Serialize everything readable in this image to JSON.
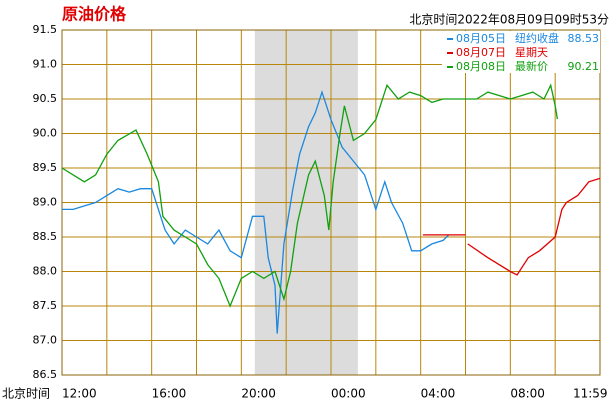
{
  "chart_data": {
    "type": "line",
    "title": "原油价格",
    "subtitle": "北京时间2022年08月09日09时53分",
    "x_axis_label": "北京时间",
    "xlim": [
      0,
      24
    ],
    "xticks": [
      {
        "value": 0,
        "label": "12:00"
      },
      {
        "value": 4,
        "label": "16:00"
      },
      {
        "value": 8,
        "label": "20:00"
      },
      {
        "value": 12,
        "label": "00:00"
      },
      {
        "value": 16,
        "label": "04:00"
      },
      {
        "value": 20,
        "label": "08:00"
      },
      {
        "value": 23.98,
        "label": "11:59"
      }
    ],
    "xgrid": [
      2,
      4,
      6,
      8,
      10,
      12,
      14,
      16,
      18,
      20,
      22,
      24
    ],
    "shaded_x": [
      8.6,
      13.2
    ],
    "ylim": [
      86.5,
      91.5
    ],
    "yticks": [
      {
        "value": 86.5,
        "label": "86.5"
      },
      {
        "value": 87,
        "label": "87.0"
      },
      {
        "value": 87.5,
        "label": "87.5"
      },
      {
        "value": 88,
        "label": "88.0"
      },
      {
        "value": 88.5,
        "label": "88.5"
      },
      {
        "value": 89,
        "label": "89.0"
      },
      {
        "value": 89.5,
        "label": "89.5"
      },
      {
        "value": 90,
        "label": "90.0"
      },
      {
        "value": 90.5,
        "label": "90.5"
      },
      {
        "value": 91,
        "label": "91.0"
      },
      {
        "value": 91.5,
        "label": "91.5"
      }
    ],
    "grid": true,
    "series": [
      {
        "name": "08月05日",
        "color": "#1a88e0",
        "note": "纽约收盘",
        "value_label": "88.53",
        "x": [
          0,
          0.5,
          1,
          1.5,
          2,
          2.5,
          3,
          3.5,
          4,
          4.3,
          4.6,
          5,
          5.5,
          6,
          6.5,
          7,
          7.5,
          8,
          8.5,
          9,
          9.2,
          9.5,
          9.6,
          9.9,
          10.3,
          10.6,
          11,
          11.3,
          11.6,
          12,
          12.5,
          13,
          13.5,
          14,
          14.4,
          14.7,
          15.2,
          15.6,
          16,
          16.5,
          17,
          17.25
        ],
        "values": [
          88.9,
          88.9,
          88.95,
          89.0,
          89.1,
          89.2,
          89.15,
          89.2,
          89.2,
          88.9,
          88.6,
          88.4,
          88.6,
          88.5,
          88.4,
          88.6,
          88.3,
          88.2,
          88.8,
          88.8,
          88.2,
          87.8,
          87.1,
          88.4,
          89.2,
          89.7,
          90.1,
          90.3,
          90.6,
          90.2,
          89.8,
          89.6,
          89.4,
          88.9,
          89.3,
          89.0,
          88.7,
          88.3,
          88.3,
          88.4,
          88.45,
          88.53
        ]
      },
      {
        "name": "08月07日",
        "color": "#e00000",
        "note": "星期天",
        "x": [
          16.1,
          18.0,
          18.1,
          18.1,
          19,
          20,
          20.3,
          20.8,
          21.3,
          22,
          22.3,
          22.5,
          23,
          23.5,
          24
        ],
        "values": [
          88.53,
          88.53,
          null,
          88.4,
          88.2,
          88.0,
          87.95,
          88.2,
          88.3,
          88.5,
          88.9,
          89.0,
          89.1,
          89.3,
          89.35
        ]
      },
      {
        "name": "08月08日",
        "color": "#10a010",
        "note": "最新价",
        "value_label": "90.21",
        "x": [
          0,
          0.5,
          1,
          1.5,
          2,
          2.5,
          3.3,
          3.8,
          4.3,
          4.5,
          5,
          5.5,
          6,
          6.5,
          7,
          7.5,
          8,
          8.5,
          9,
          9.5,
          9.9,
          10.2,
          10.5,
          11,
          11.3,
          11.7,
          11.9,
          12.1,
          12.4,
          12.6,
          13,
          13.5,
          14,
          14.5,
          15,
          15.5,
          16,
          16.5,
          17,
          18,
          18.5,
          19,
          20,
          20.5,
          21,
          21.5,
          21.8,
          22,
          22.1
        ],
        "values": [
          89.5,
          89.4,
          89.3,
          89.4,
          89.7,
          89.9,
          90.05,
          89.7,
          89.3,
          88.8,
          88.6,
          88.5,
          88.4,
          88.1,
          87.9,
          87.5,
          87.9,
          88.0,
          87.9,
          88.0,
          87.6,
          88.0,
          88.7,
          89.4,
          89.6,
          89.1,
          88.6,
          89.3,
          90.0,
          90.4,
          89.9,
          90.0,
          90.2,
          90.7,
          90.5,
          90.6,
          90.55,
          90.45,
          90.5,
          90.5,
          90.5,
          90.6,
          90.5,
          90.55,
          90.6,
          90.5,
          90.7,
          90.4,
          90.21
        ]
      }
    ]
  }
}
